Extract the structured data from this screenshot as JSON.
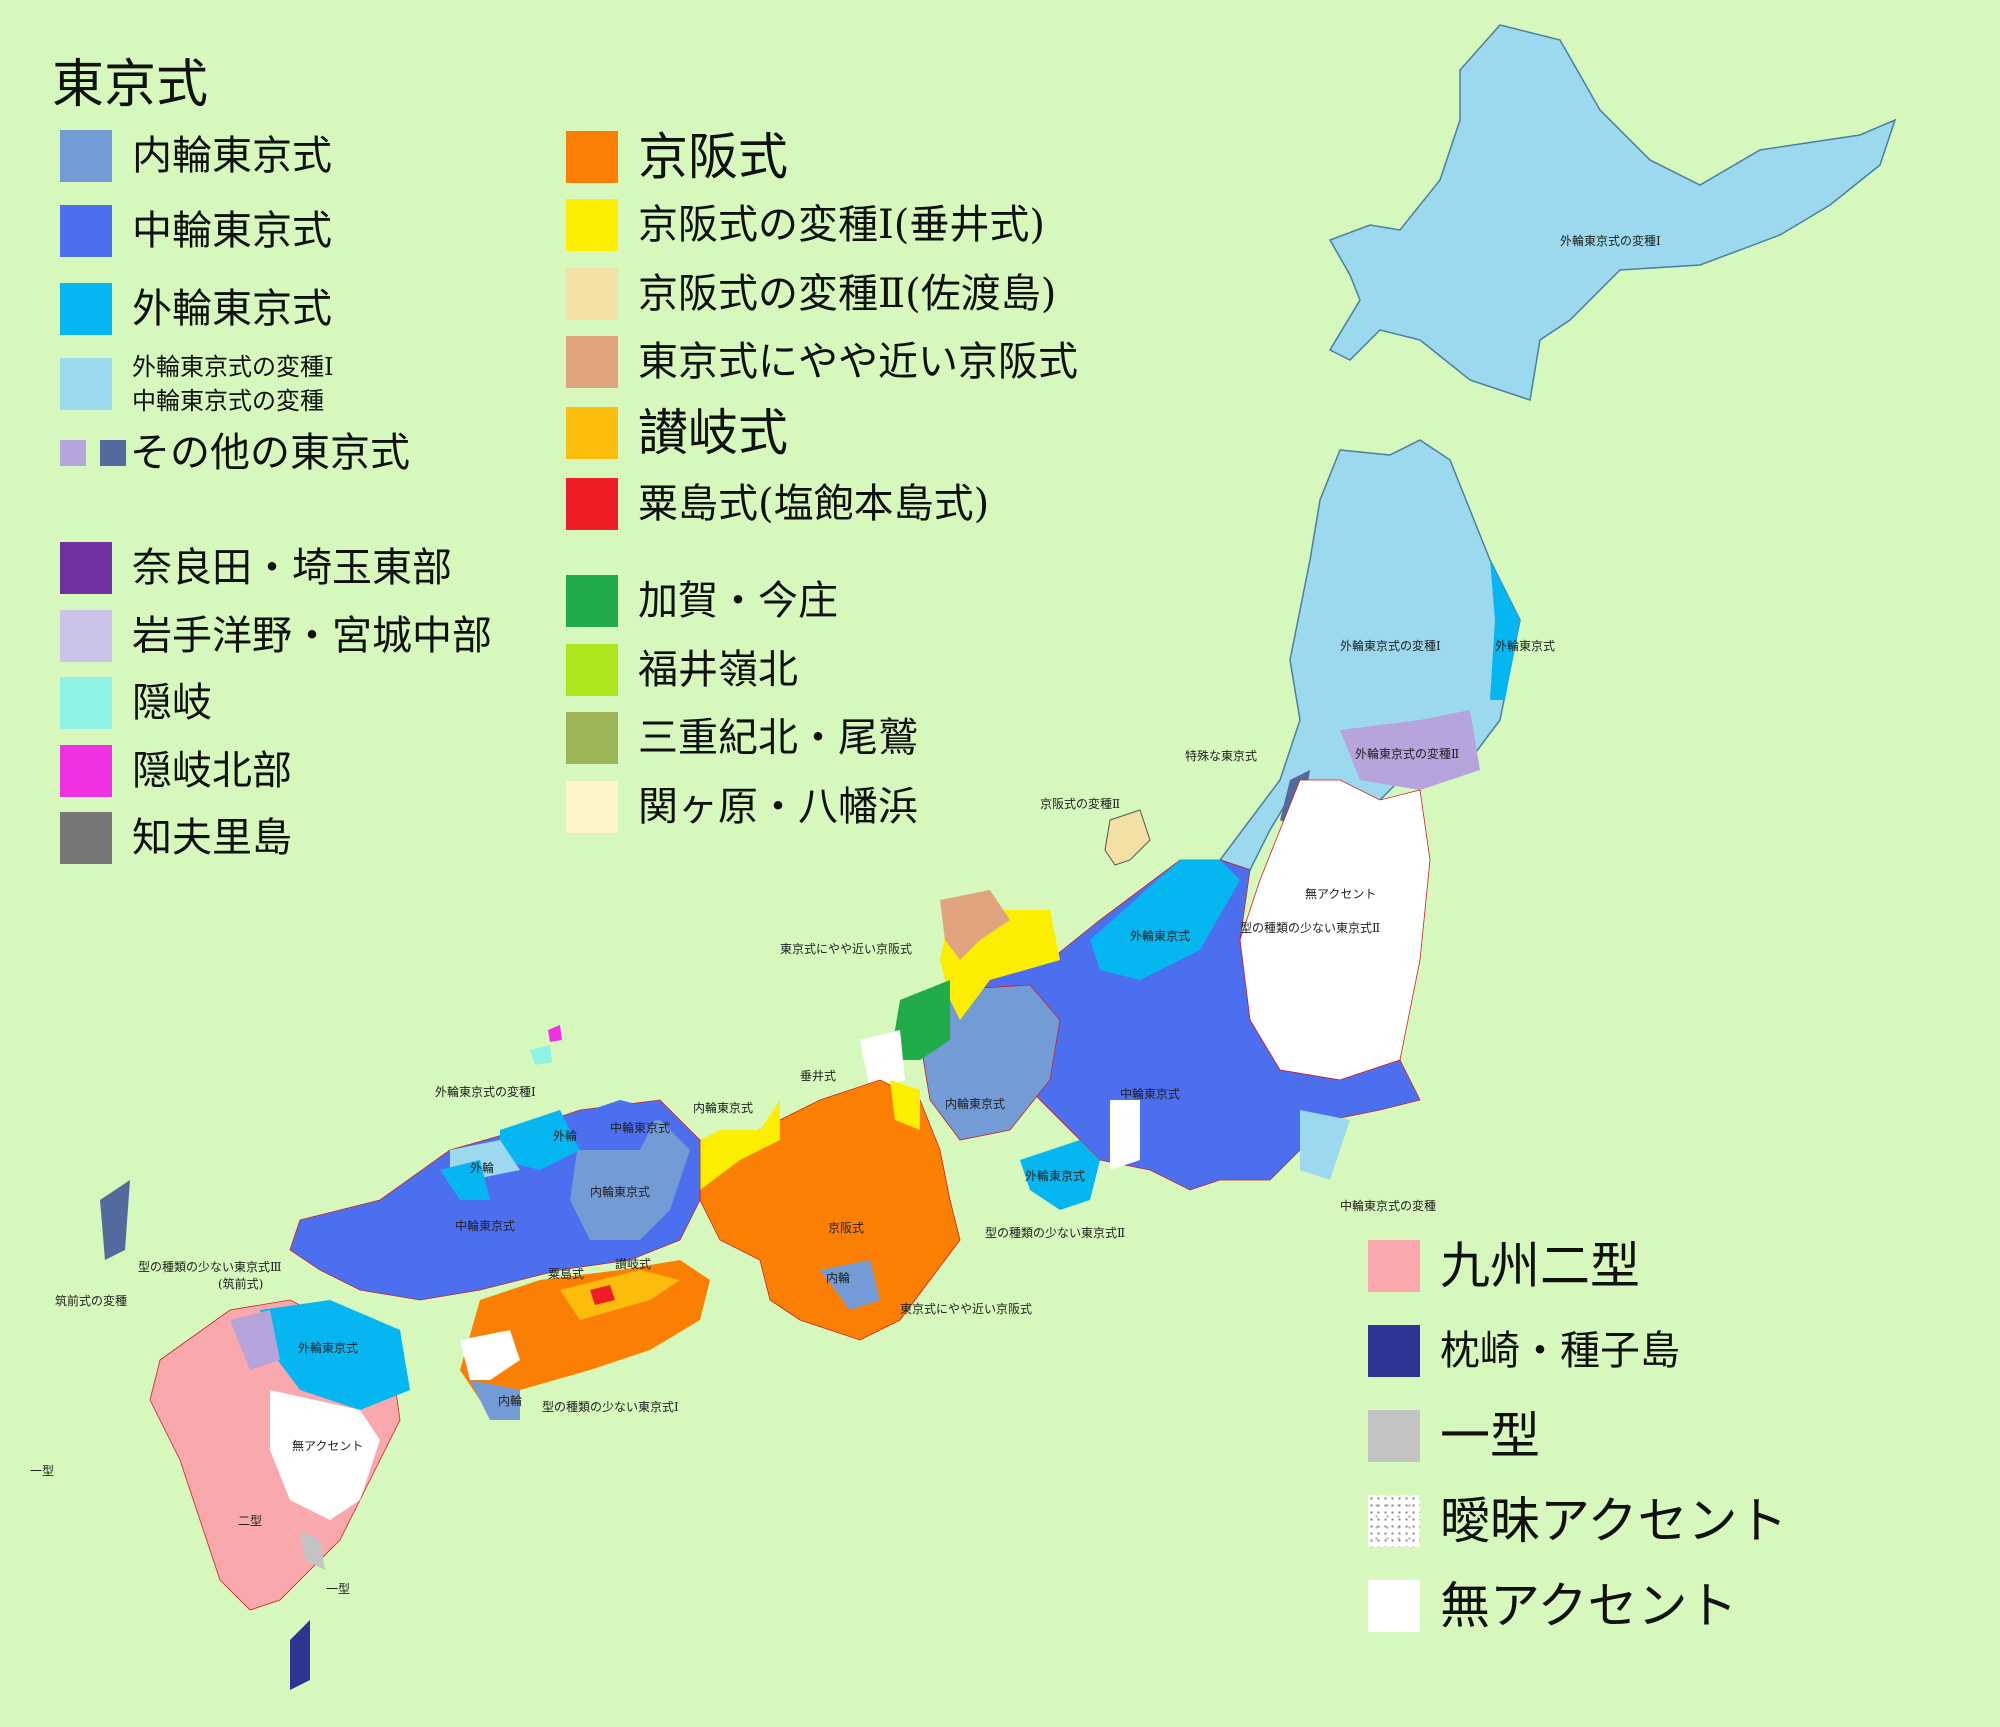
{
  "legend_left": {
    "title": "東京式",
    "items": [
      {
        "label": "内輪東京式",
        "color": "#739bd6"
      },
      {
        "label": "中輪東京式",
        "color": "#4c6ff0"
      },
      {
        "label": "外輪東京式",
        "color": "#05b6f0"
      },
      {
        "label_line1": "外輪東京式の変種Ⅰ",
        "label_line2": "中輪東京式の変種",
        "color": "#9dd9ee"
      },
      {
        "label": "その他の東京式",
        "color_a": "#b7a4dc",
        "color_b": "#536a9c"
      }
    ],
    "items2": [
      {
        "label": "奈良田・埼玉東部",
        "color": "#70309e"
      },
      {
        "label": "岩手洋野・宮城中部",
        "color": "#cbc2e8"
      },
      {
        "label": "隠岐",
        "color": "#8ff2e4"
      },
      {
        "label": "隠岐北部",
        "color": "#f030e4"
      },
      {
        "label": "知夫里島",
        "color": "#777777"
      }
    ]
  },
  "legend_middle": {
    "items": [
      {
        "label": "京阪式",
        "color": "#fb7f02"
      },
      {
        "label": "京阪式の変種Ⅰ(垂井式)",
        "color": "#fcee00"
      },
      {
        "label": "京阪式の変種Ⅱ(佐渡島)",
        "color": "#f2e0a4"
      },
      {
        "label": "東京式にやや近い京阪式",
        "color": "#e0a57e"
      },
      {
        "label": "讃岐式",
        "color": "#fcbc0c"
      },
      {
        "label": "粟島式(塩飽本島式)",
        "color": "#ee1d26"
      }
    ],
    "items2": [
      {
        "label": "加賀・今庄",
        "color": "#20ac48"
      },
      {
        "label": "福井嶺北",
        "color": "#aee61d"
      },
      {
        "label": "三重紀北・尾鷲",
        "color": "#9db558"
      },
      {
        "label": "関ヶ原・八幡浜",
        "color": "#fef6c8"
      }
    ]
  },
  "legend_right": {
    "items": [
      {
        "label": "九州二型",
        "color": "#f9a8ad"
      },
      {
        "label": "枕崎・種子島",
        "color": "#2f3493"
      },
      {
        "label": "一型",
        "color": "#c3c3c3"
      },
      {
        "label": "曖昧アクセント",
        "color": "speckle"
      },
      {
        "label": "無アクセント",
        "color": "#ffffff"
      }
    ]
  },
  "map_labels": {
    "hokkaido": "外輪東京式の変種Ⅰ",
    "tohoku_west": "外輪東京式の変種Ⅰ",
    "tohoku_east": "外輪東京式",
    "tohoku_south": "外輪東京式の変種Ⅱ",
    "special": "特殊な東京式",
    "sado": "京阪式の変種Ⅱ",
    "no_accent_n": "無アクセント",
    "few_types_2": "型の種類の少ない東京式Ⅱ",
    "near_kyoto_noto": "東京式にやや近い京阪式",
    "outer_niigata": "外輪東京式",
    "inner_chubu": "内輪東京式",
    "middle_kanto": "中輪東京式",
    "outer_shizuoka": "外輪東京式",
    "few_types_2b": "型の種類の少ない東京式Ⅱ",
    "middle_variant": "中輪東京式の変種",
    "tarui": "垂井式",
    "inner_sanin": "内輪東京式",
    "middle_sanin": "中輪東京式",
    "outer_variant_oki": "外輪東京式の変種Ⅰ",
    "outer_a": "外輪",
    "outer_b": "外輪",
    "inner_chugoku": "内輪東京式",
    "middle_chugoku": "中輪東京式",
    "keihan": "京阪式",
    "inner_kii": "内輪",
    "near_kyoto_kii": "東京式にやや近い京阪式",
    "awashima": "粟島式",
    "sanuki": "讃岐式",
    "few_types_3": "型の種類の少ない東京式Ⅲ",
    "chikuzen_paren": "(筑前式)",
    "chikuzen_variant": "筑前式の変種",
    "outer_kyushu": "外輪東京式",
    "inner_shikoku": "内輪",
    "few_types_1": "型の種類の少ない東京式Ⅰ",
    "no_accent_s": "無アクセント",
    "ichikei_w": "一型",
    "nikei": "二型",
    "ichikei_s": "一型"
  }
}
